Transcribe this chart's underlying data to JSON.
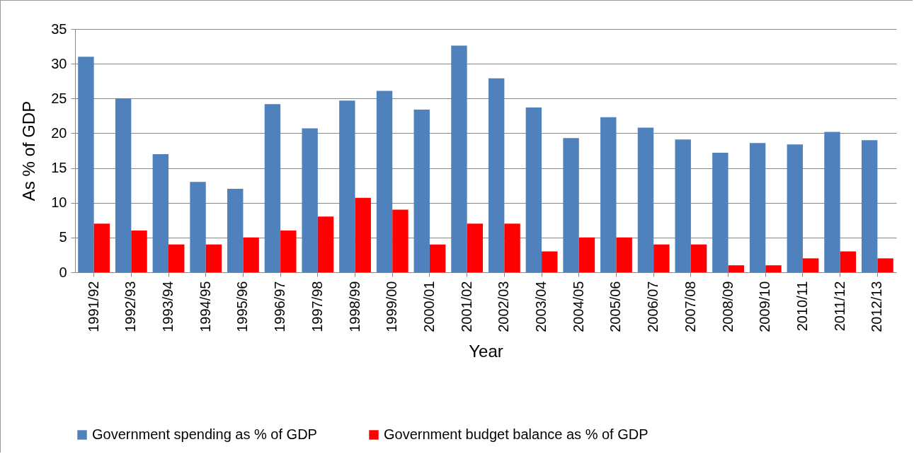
{
  "chart_data": {
    "type": "bar",
    "xlabel": "Year",
    "ylabel": "As % of GDP",
    "categories": [
      "1991/92",
      "1992/93",
      "1993/94",
      "1994/95",
      "1995/96",
      "1996/97",
      "1997/98",
      "1998/99",
      "1999/00",
      "2000/01",
      "2001/02",
      "2002/03",
      "2003/04",
      "2004/05",
      "2005/06",
      "2006/07",
      "2007/08",
      "2008/09",
      "2009/10",
      "2010/11",
      "2011/12",
      "2012/13"
    ],
    "series": [
      {
        "name": "Government spending as % of GDP",
        "color": "#4f81bd",
        "values": [
          31,
          25,
          17,
          13,
          12,
          24.2,
          20.7,
          24.7,
          26.1,
          23.4,
          32.6,
          27.9,
          23.7,
          19.3,
          22.3,
          20.8,
          19.1,
          17.2,
          18.6,
          18.4,
          20.2,
          19.0
        ]
      },
      {
        "name": "Government budget balance as % of GDP",
        "color": "#ff0000",
        "values": [
          7,
          6,
          4,
          4,
          5,
          6,
          8,
          10.7,
          9,
          4,
          7,
          7,
          3,
          5,
          5,
          4,
          4,
          1,
          1,
          2,
          3,
          2
        ]
      }
    ],
    "ylim": [
      0,
      35
    ],
    "yticks": [
      0,
      5,
      10,
      15,
      20,
      25,
      30,
      35
    ],
    "grid": "y",
    "legend": "bottom"
  }
}
